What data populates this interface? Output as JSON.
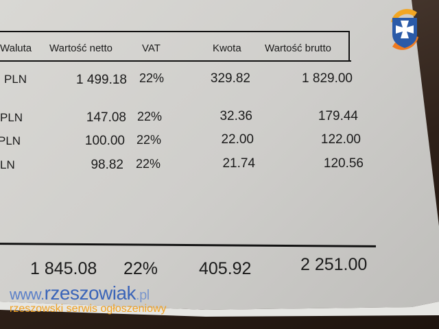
{
  "header": {
    "currency": "Waluta",
    "net": "Wartość netto",
    "vat": "VAT",
    "amount": "Kwota",
    "gross": "Wartość brutto"
  },
  "rows": [
    {
      "currency": "PLN",
      "net": "1 499.18",
      "vat": "22%",
      "amount": "329.82",
      "gross": "1 829.00"
    },
    {
      "currency": "PLN",
      "net": "147.08",
      "vat": "22%",
      "amount": "32.36",
      "gross": "179.44"
    },
    {
      "currency": "PLN",
      "net": "100.00",
      "vat": "22%",
      "amount": "22.00",
      "gross": "122.00"
    },
    {
      "currency": "LN",
      "net": "98.82",
      "vat": "22%",
      "amount": "21.74",
      "gross": "120.56"
    }
  ],
  "totals": {
    "net": "1 845.08",
    "vat": "22%",
    "amount": "405.92",
    "gross": "2 251.00"
  },
  "watermark": {
    "www": "www.",
    "name": "rzeszowiak",
    "tld": ".pl",
    "tagline": "rzeszowski serwis ogłoszeniowy"
  },
  "colors": {
    "brand_blue": "#3a64b8",
    "brand_orange": "#f0a020"
  }
}
